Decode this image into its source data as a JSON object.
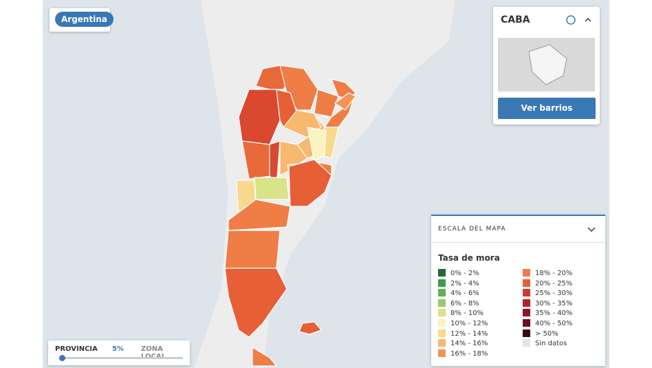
{
  "badge": "Argentina",
  "panel": {
    "title": "CABA",
    "button": "Ver barrios"
  },
  "legend": {
    "header": "ESCALA DEL MAPA",
    "title": "Tasa de mora",
    "items": [
      {
        "label": "0% - 2%",
        "color": "#1f6b3a"
      },
      {
        "label": "2% - 4%",
        "color": "#3a9a4f"
      },
      {
        "label": "4% - 6%",
        "color": "#62b05c"
      },
      {
        "label": "6% - 8%",
        "color": "#98c96a"
      },
      {
        "label": "8% - 10%",
        "color": "#d8e38a"
      },
      {
        "label": "10% - 12%",
        "color": "#fbf3c0"
      },
      {
        "label": "12% - 14%",
        "color": "#f9d98e"
      },
      {
        "label": "14% - 16%",
        "color": "#f7b870"
      },
      {
        "label": "16% - 18%",
        "color": "#f49456"
      },
      {
        "label": "18% - 20%",
        "color": "#ef7d45"
      },
      {
        "label": "20% - 25%",
        "color": "#e65f37"
      },
      {
        "label": "25% - 30%",
        "color": "#d2392c"
      },
      {
        "label": "30% - 35%",
        "color": "#b5212a"
      },
      {
        "label": "35% - 40%",
        "color": "#8e1424"
      },
      {
        "label": "40% - 50%",
        "color": "#68101e"
      },
      {
        "label": "> 50%",
        "color": "#3a0a12"
      },
      {
        "label": "Sin datos",
        "color": "#e4e4e4"
      }
    ]
  },
  "slider": {
    "left": "PROVINCIA",
    "value": "5%",
    "right": "ZONA LOCAL"
  }
}
